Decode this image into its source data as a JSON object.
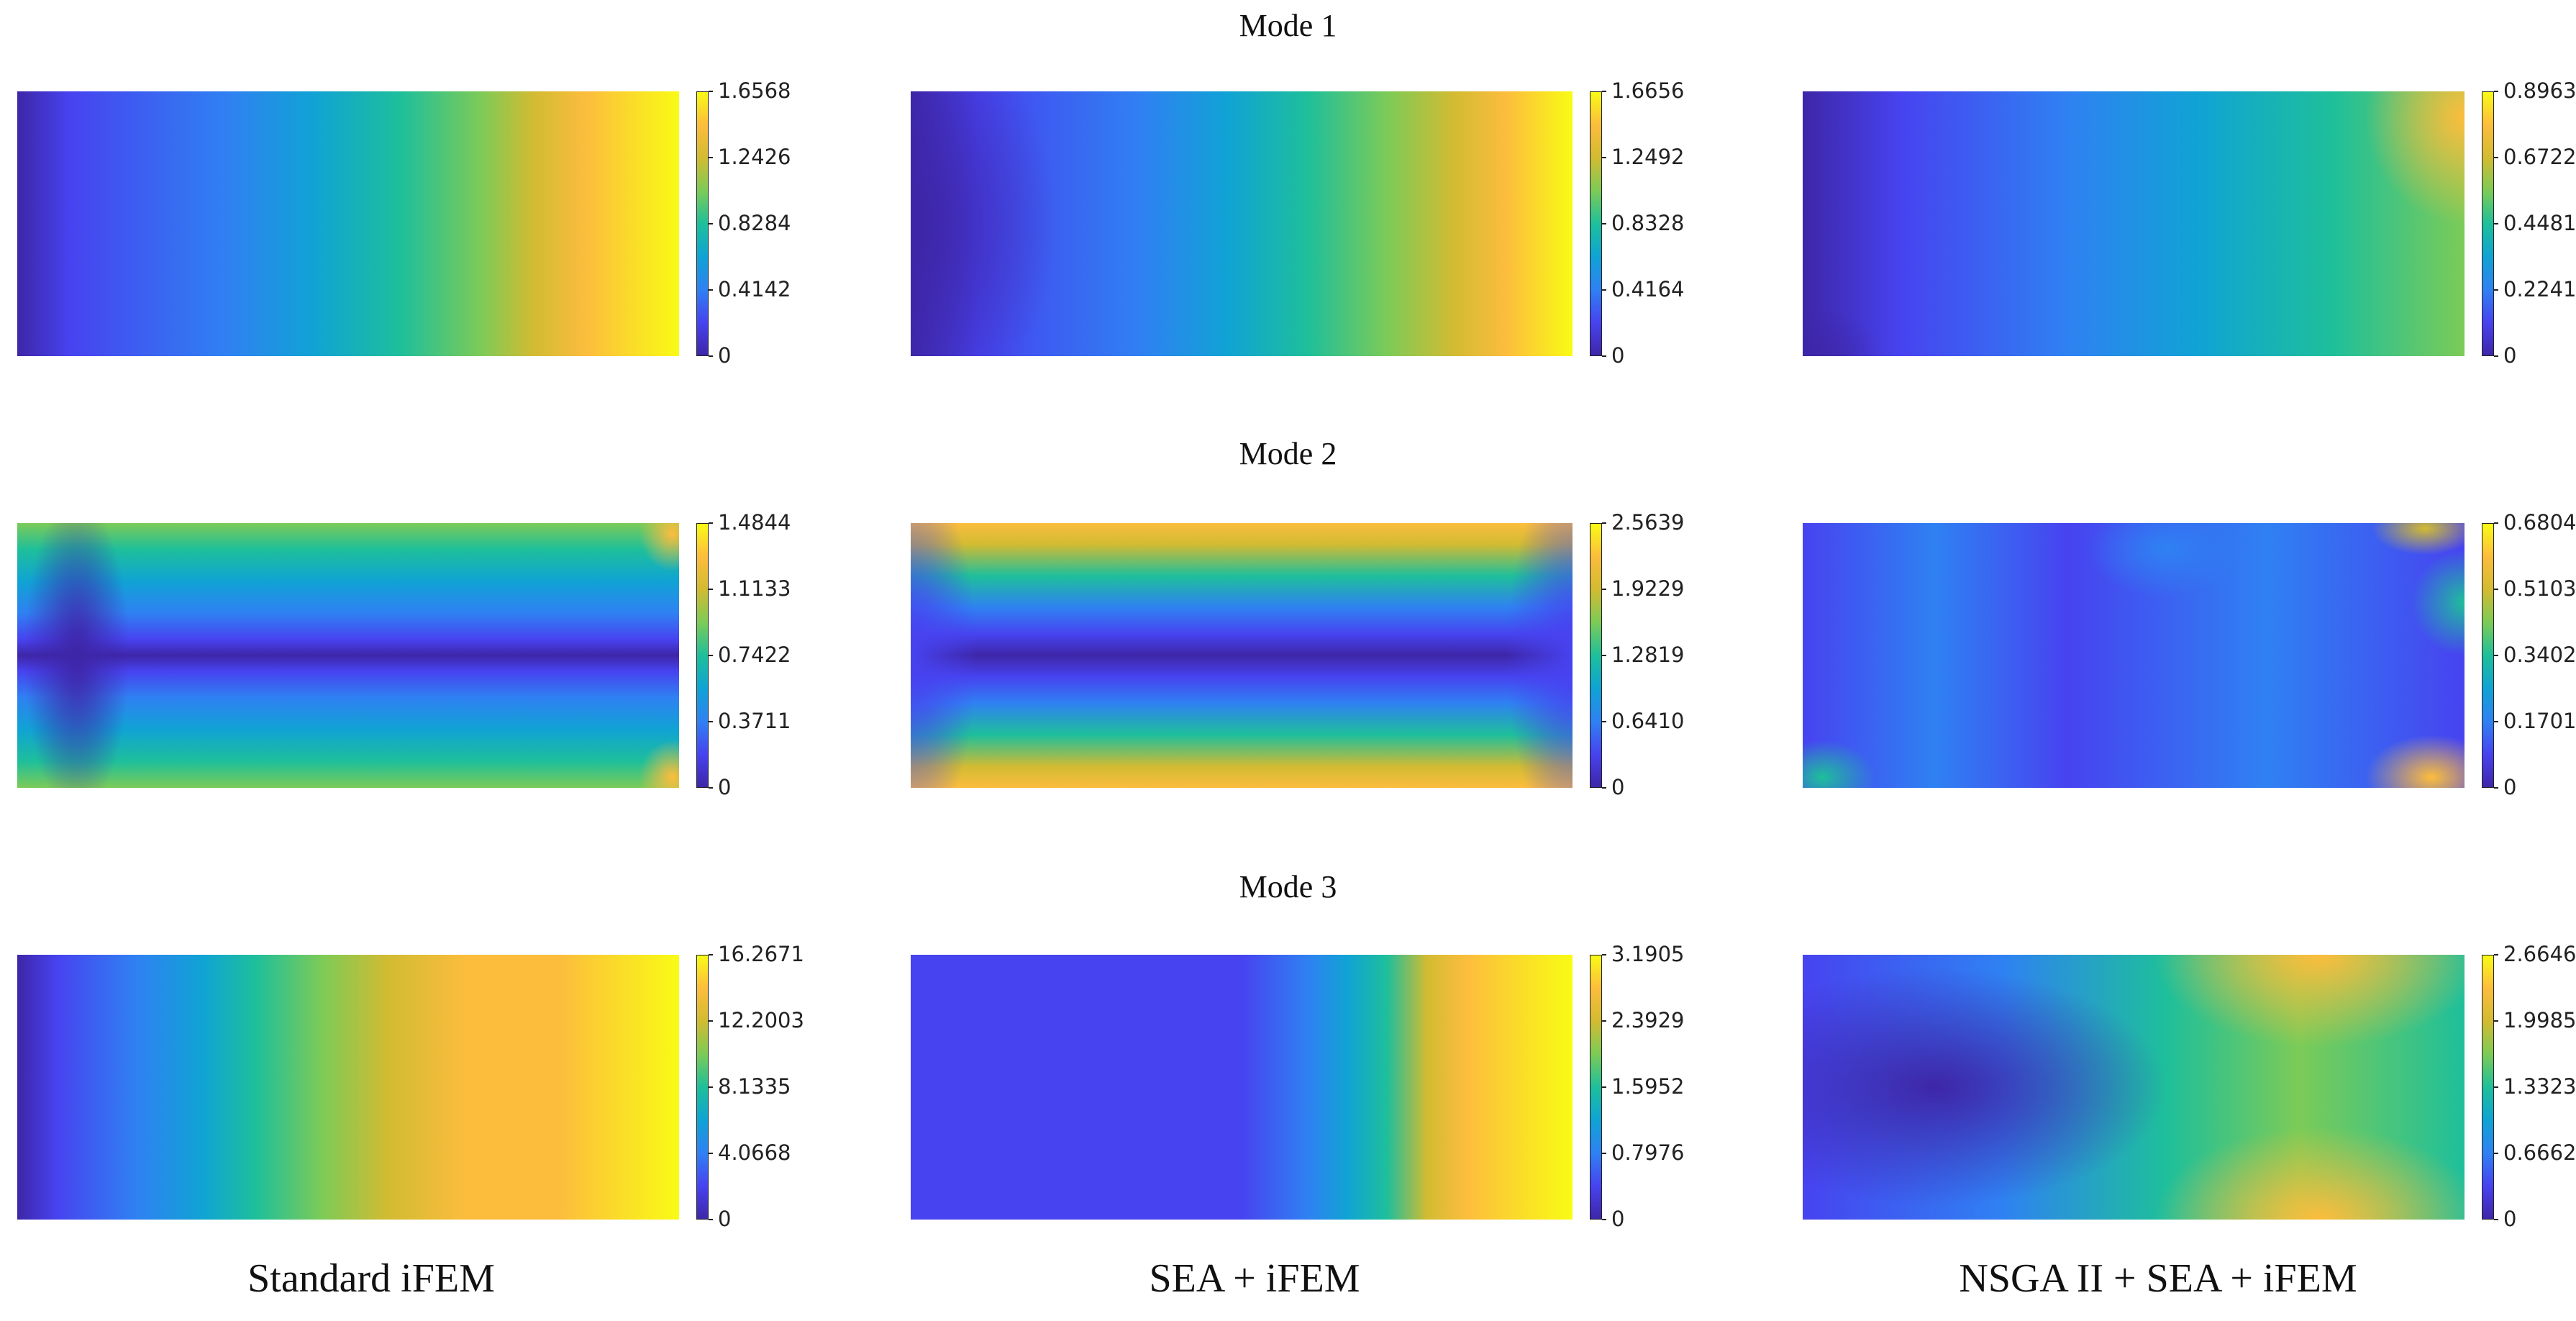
{
  "mode_titles": [
    "Mode 1",
    "Mode 2",
    "Mode 3"
  ],
  "column_labels": [
    "Standard iFEM",
    "SEA + iFEM",
    "NSGA II + SEA + iFEM"
  ],
  "colormap": [
    "#3e26a8",
    "#4743f0",
    "#2f81f2",
    "#10a3d4",
    "#1ebf9b",
    "#7ccb57",
    "#d2bb32",
    "#fcbd3d",
    "#f9fb15"
  ],
  "chart_data": [
    {
      "type": "heatmap",
      "title": "Mode 1",
      "xlabel": "Standard iFEM",
      "colorbar_ticks": [
        "0",
        "0.4142",
        "0.8284",
        "1.2426",
        "1.6568"
      ],
      "clim": [
        0,
        1.6568
      ]
    },
    {
      "type": "heatmap",
      "title": "Mode 1",
      "xlabel": "SEA + iFEM",
      "colorbar_ticks": [
        "0",
        "0.4164",
        "0.8328",
        "1.2492",
        "1.6656"
      ],
      "clim": [
        0,
        1.6656
      ]
    },
    {
      "type": "heatmap",
      "title": "Mode 1",
      "xlabel": "NSGA II + SEA + iFEM",
      "colorbar_ticks": [
        "0",
        "0.2241",
        "0.4481",
        "0.6722",
        "0.8963"
      ],
      "clim": [
        0,
        0.8963
      ]
    },
    {
      "type": "heatmap",
      "title": "Mode 2",
      "xlabel": "Standard iFEM",
      "colorbar_ticks": [
        "0",
        "0.3711",
        "0.7422",
        "1.1133",
        "1.4844"
      ],
      "clim": [
        0,
        1.4844
      ]
    },
    {
      "type": "heatmap",
      "title": "Mode 2",
      "xlabel": "SEA + iFEM",
      "colorbar_ticks": [
        "0",
        "0.6410",
        "1.2819",
        "1.9229",
        "2.5639"
      ],
      "clim": [
        0,
        2.5639
      ]
    },
    {
      "type": "heatmap",
      "title": "Mode 2",
      "xlabel": "NSGA II + SEA + iFEM",
      "colorbar_ticks": [
        "0",
        "0.1701",
        "0.3402",
        "0.5103",
        "0.6804"
      ],
      "clim": [
        0,
        0.6804
      ]
    },
    {
      "type": "heatmap",
      "title": "Mode 3",
      "xlabel": "Standard iFEM",
      "colorbar_ticks": [
        "0",
        "4.0668",
        "8.1335",
        "12.2003",
        "16.2671"
      ],
      "clim": [
        0,
        16.2671
      ]
    },
    {
      "type": "heatmap",
      "title": "Mode 3",
      "xlabel": "SEA + iFEM",
      "colorbar_ticks": [
        "0",
        "0.7976",
        "1.5952",
        "2.3929",
        "3.1905"
      ],
      "clim": [
        0,
        3.1905
      ]
    },
    {
      "type": "heatmap",
      "title": "Mode 3",
      "xlabel": "NSGA II + SEA + iFEM",
      "colorbar_ticks": [
        "0",
        "0.6662",
        "1.3323",
        "1.9985",
        "2.6646"
      ],
      "clim": [
        0,
        2.6646
      ]
    }
  ]
}
